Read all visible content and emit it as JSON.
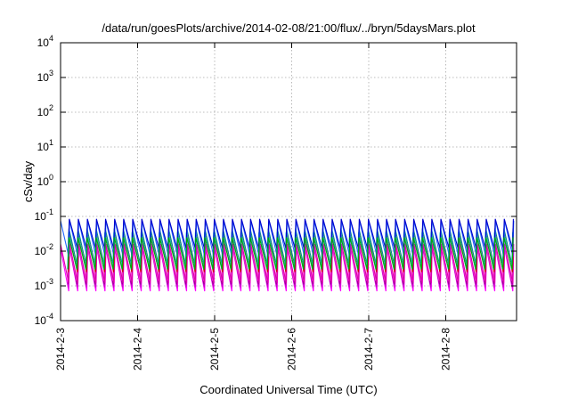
{
  "chart_data": {
    "type": "line",
    "title": "/data/run/goesPlots/archive/2014-02-08/21:00/flux/../bryn/5daysMars.plot",
    "xlabel": "Coordinated Universal Time (UTC)",
    "ylabel": "cSv/day",
    "y_scale": "log",
    "ylim": [
      0.0001,
      10000
    ],
    "xlim": [
      "2014-02-03 00:00",
      "2014-02-08 21:00"
    ],
    "x_ticks": [
      "2014-2-3",
      "2014-2-4",
      "2014-2-5",
      "2014-2-6",
      "2014-2-7",
      "2014-2-8"
    ],
    "y_ticks": [
      {
        "value": 0.0001,
        "base": "10",
        "exp": "-4"
      },
      {
        "value": 0.001,
        "base": "10",
        "exp": "-3"
      },
      {
        "value": 0.01,
        "base": "10",
        "exp": "-2"
      },
      {
        "value": 0.1,
        "base": "10",
        "exp": "-1"
      },
      {
        "value": 1,
        "base": "10",
        "exp": "0"
      },
      {
        "value": 10,
        "base": "10",
        "exp": "1"
      },
      {
        "value": 100,
        "base": "10",
        "exp": "2"
      },
      {
        "value": 1000,
        "base": "10",
        "exp": "3"
      },
      {
        "value": 10000,
        "base": "10",
        "exp": "4"
      }
    ],
    "grid": true,
    "pattern": "sawtooth",
    "cycles_per_day": 8.5,
    "series": [
      {
        "color": "#ff00ff",
        "peak": 0.012,
        "trough": 0.0007
      },
      {
        "color": "#cc00cc",
        "peak": 0.015,
        "trough": 0.0009
      },
      {
        "color": "#990099",
        "peak": 0.018,
        "trough": 0.0011
      },
      {
        "color": "#ff44dd",
        "peak": 0.02,
        "trough": 0.0014
      },
      {
        "color": "#dd00aa",
        "peak": 0.016,
        "trough": 0.0012
      },
      {
        "color": "#cc0000",
        "peak": 0.03,
        "trough": 0.0025
      },
      {
        "color": "#008888",
        "peak": 0.045,
        "trough": 0.004
      },
      {
        "color": "#00cccc",
        "peak": 0.035,
        "trough": 0.003
      },
      {
        "color": "#2266ff",
        "peak": 0.075,
        "trough": 0.007
      },
      {
        "color": "#0000cc",
        "peak": 0.085,
        "trough": 0.012
      },
      {
        "color": "#00aa00",
        "peak": 0.025,
        "trough": 0.003
      }
    ]
  }
}
